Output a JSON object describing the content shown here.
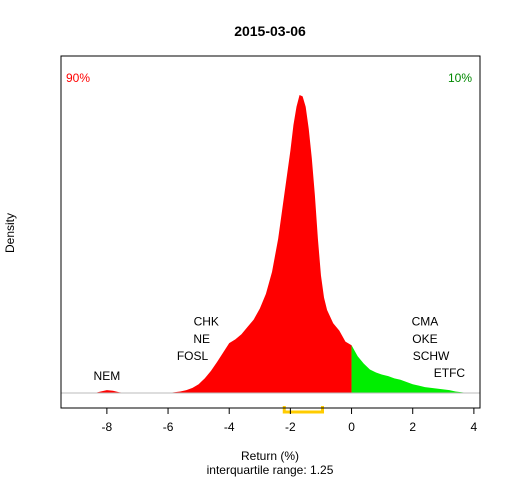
{
  "chart_data": {
    "type": "area",
    "title": "2015-03-06",
    "xlabel": "Return (%)",
    "ylabel": "Density",
    "subtitle": "interquartile range: 1.25",
    "xlim": [
      -9.5,
      4.2
    ],
    "ylim": [
      0,
      0.44
    ],
    "split_at": 0,
    "left_share_label": "90%",
    "right_share_label": "10%",
    "colors": {
      "negative": "#ff0000",
      "positive": "#00ee00",
      "left_pct": "#ff0000",
      "right_pct": "#008800",
      "iqr": "#ffcc00"
    },
    "x_ticks": [
      -8,
      -6,
      -4,
      -2,
      0,
      2,
      4
    ],
    "x_tick_labels": [
      "-8",
      "-6",
      "-4",
      "-2",
      "0",
      "2",
      "4"
    ],
    "iqr": [
      -2.2,
      -0.95
    ],
    "density": {
      "x": [
        -8.4,
        -8.2,
        -8.0,
        -7.8,
        -7.6,
        -7.4,
        -7.2,
        -7.0,
        -6.5,
        -6.0,
        -5.8,
        -5.6,
        -5.4,
        -5.2,
        -5.0,
        -4.8,
        -4.6,
        -4.4,
        -4.2,
        -4.0,
        -3.8,
        -3.6,
        -3.4,
        -3.2,
        -3.0,
        -2.8,
        -2.6,
        -2.4,
        -2.2,
        -2.0,
        -1.9,
        -1.8,
        -1.7,
        -1.6,
        -1.5,
        -1.4,
        -1.3,
        -1.2,
        -1.1,
        -1.0,
        -0.9,
        -0.8,
        -0.6,
        -0.4,
        -0.2,
        0.0,
        0.2,
        0.4,
        0.6,
        0.8,
        1.0,
        1.2,
        1.4,
        1.6,
        1.8,
        2.0,
        2.2,
        2.4,
        2.6,
        2.8,
        3.0,
        3.2,
        3.4,
        3.6,
        3.8
      ],
      "y": [
        0.0,
        0.002,
        0.004,
        0.003,
        0.001,
        0.0,
        0.0,
        0.0,
        0.0,
        0.0,
        0.001,
        0.002,
        0.004,
        0.007,
        0.012,
        0.02,
        0.03,
        0.042,
        0.055,
        0.068,
        0.073,
        0.08,
        0.09,
        0.1,
        0.115,
        0.135,
        0.165,
        0.21,
        0.27,
        0.33,
        0.365,
        0.39,
        0.406,
        0.404,
        0.39,
        0.36,
        0.32,
        0.27,
        0.21,
        0.16,
        0.13,
        0.113,
        0.095,
        0.085,
        0.07,
        0.065,
        0.05,
        0.04,
        0.032,
        0.028,
        0.025,
        0.023,
        0.02,
        0.018,
        0.015,
        0.012,
        0.01,
        0.008,
        0.007,
        0.006,
        0.005,
        0.004,
        0.002,
        0.001,
        0.0
      ]
    },
    "annotations": [
      {
        "text": "NEM",
        "x": -8.0,
        "y": 0.018
      },
      {
        "text": "FOSL",
        "x": -5.2,
        "y": 0.045
      },
      {
        "text": "NE",
        "x": -4.9,
        "y": 0.068
      },
      {
        "text": "CHK",
        "x": -4.75,
        "y": 0.092
      },
      {
        "text": "CMA",
        "x": 2.4,
        "y": 0.092
      },
      {
        "text": "OKE",
        "x": 2.4,
        "y": 0.068
      },
      {
        "text": "SCHW",
        "x": 2.6,
        "y": 0.045
      },
      {
        "text": "ETFC",
        "x": 3.2,
        "y": 0.022
      }
    ]
  }
}
